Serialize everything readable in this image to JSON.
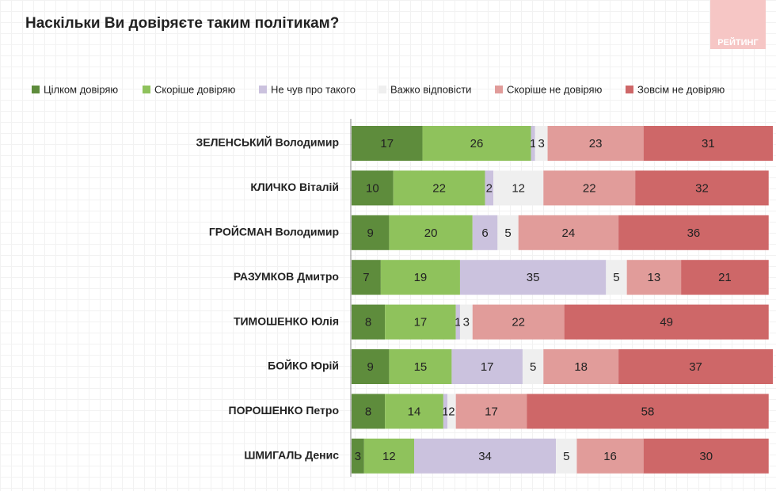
{
  "chart_data": {
    "type": "stacked-bar",
    "title": "Наскільки Ви довіряєте таким політикам?",
    "logo": "РЕЙТИНГ",
    "categories": [
      "ЗЕЛЕНСЬКИЙ Володимир",
      "КЛИЧКО Віталій",
      "ГРОЙСМАН Володимир",
      "РАЗУМКОВ Дмитро",
      "ТИМОШЕНКО Юлія",
      "БОЙКО Юрій",
      "ПОРОШЕНКО Петро",
      "ШМИГАЛЬ Денис"
    ],
    "series": [
      {
        "name": "Цілком довіряю",
        "color": "#5e8c3c",
        "values": [
          17,
          10,
          9,
          7,
          8,
          9,
          8,
          3
        ]
      },
      {
        "name": "Скоріше довіряю",
        "color": "#8fc25c",
        "values": [
          26,
          22,
          20,
          19,
          17,
          15,
          14,
          12
        ]
      },
      {
        "name": "Не чув про такого",
        "color": "#cbc2de",
        "values": [
          1,
          2,
          6,
          35,
          1,
          17,
          1,
          34
        ]
      },
      {
        "name": "Важко відповісти",
        "color": "#efefef",
        "values": [
          3,
          12,
          5,
          5,
          3,
          5,
          2,
          5
        ]
      },
      {
        "name": "Скоріше не довіряю",
        "color": "#e19c9a",
        "values": [
          23,
          22,
          24,
          13,
          22,
          18,
          17,
          16
        ]
      },
      {
        "name": "Зовсім не довіряю",
        "color": "#ce6768",
        "values": [
          31,
          32,
          36,
          21,
          49,
          37,
          58,
          30
        ]
      }
    ]
  }
}
